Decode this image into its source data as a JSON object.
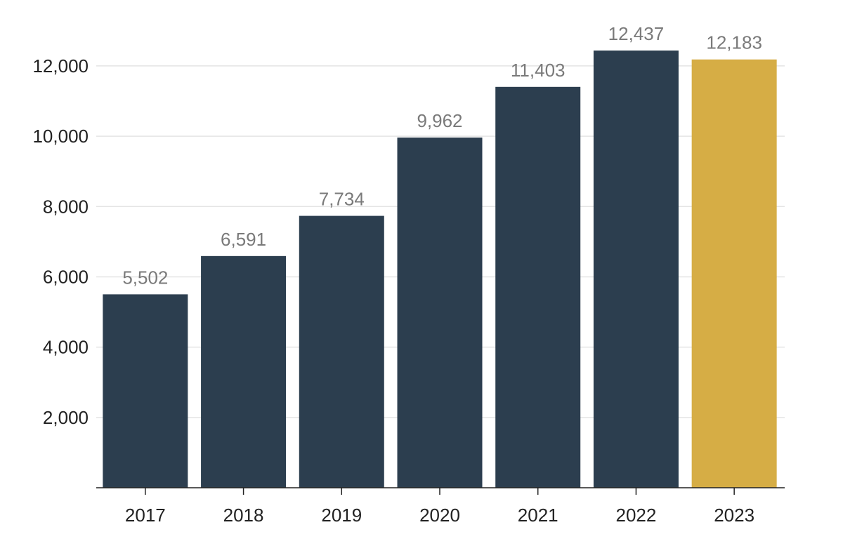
{
  "chart_data": {
    "type": "bar",
    "title": "",
    "xlabel": "",
    "ylabel": "",
    "categories": [
      "2017",
      "2018",
      "2019",
      "2020",
      "2021",
      "2022",
      "2023"
    ],
    "values": [
      5502,
      6591,
      7734,
      9962,
      11403,
      12437,
      12183
    ],
    "value_labels": [
      "5,502",
      "6,591",
      "7,734",
      "9,962",
      "11,403",
      "12,437",
      "12,183"
    ],
    "ylim": [
      0,
      12437
    ],
    "yticks": [
      2000,
      4000,
      6000,
      8000,
      10000,
      12000
    ],
    "ytick_labels": [
      "2,000",
      "4,000",
      "6,000",
      "8,000",
      "10,000",
      "12,000"
    ],
    "grid": true,
    "colors": {
      "default": "#2c3e4f",
      "highlight": "#d6ad45"
    },
    "highlight_index": 6
  }
}
